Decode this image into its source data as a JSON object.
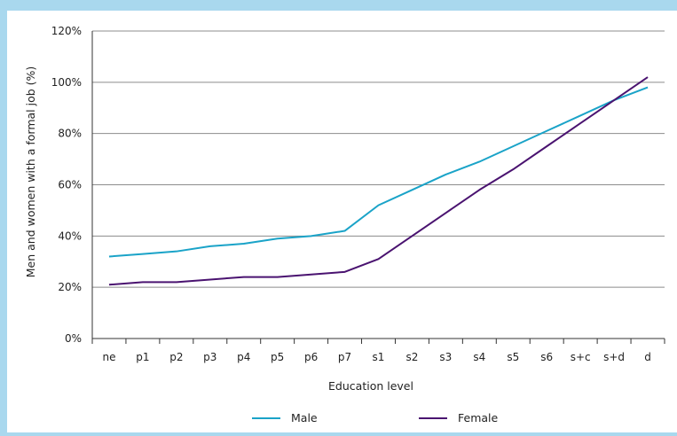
{
  "chart_data": {
    "type": "line",
    "title": "",
    "xlabel": "Education level",
    "ylabel": "Men and women with a formal job (%)",
    "categories": [
      "ne",
      "p1",
      "p2",
      "p3",
      "p4",
      "p5",
      "p6",
      "p7",
      "s1",
      "s2",
      "s3",
      "s4",
      "s5",
      "s6",
      "s+c",
      "s+d",
      "d"
    ],
    "y_ticks": [
      "0%",
      "20%",
      "40%",
      "60%",
      "80%",
      "100%",
      "120%"
    ],
    "ylim": [
      0,
      120
    ],
    "grid": "horizontal",
    "legend_position": "bottom",
    "series": [
      {
        "name": "Male",
        "color": "#1aa3c8",
        "values": [
          32,
          33,
          34,
          36,
          37,
          39,
          40,
          42,
          52,
          58,
          64,
          69,
          75,
          81,
          87,
          93,
          98
        ]
      },
      {
        "name": "Female",
        "color": "#4a1370",
        "values": [
          21,
          22,
          22,
          23,
          24,
          24,
          25,
          26,
          31,
          40,
          49,
          58,
          66,
          75,
          84,
          93,
          102
        ]
      }
    ]
  },
  "colors": {
    "border": "#a9d8ee",
    "gridline": "#8c8c8c",
    "axis": "#333333"
  }
}
